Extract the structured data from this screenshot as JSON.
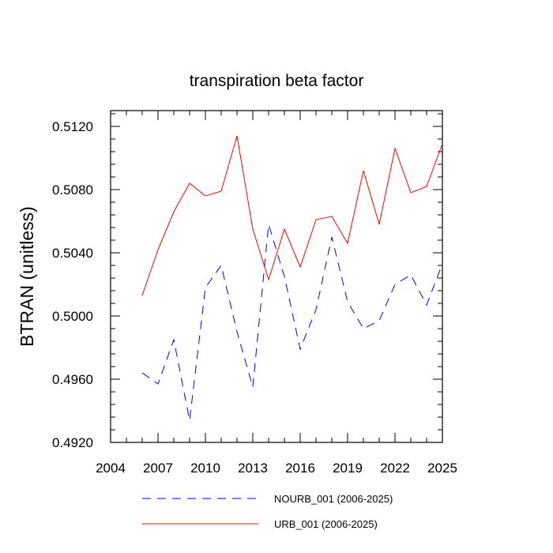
{
  "chart_data": {
    "type": "line",
    "title": "transpiration beta factor",
    "xlabel": "",
    "ylabel": "BTRAN  (unitless)",
    "xlim": [
      2004,
      2025
    ],
    "ylim": [
      0.492,
      0.513
    ],
    "xticks": [
      2004,
      2007,
      2010,
      2013,
      2016,
      2019,
      2022,
      2025
    ],
    "yticks": [
      0.492,
      0.496,
      0.5,
      0.504,
      0.508,
      0.512
    ],
    "ytick_labels": [
      "0.4920",
      "0.4960",
      "0.5000",
      "0.5040",
      "0.5080",
      "0.5120"
    ],
    "x": [
      2006,
      2007,
      2008,
      2009,
      2010,
      2011,
      2012,
      2013,
      2014,
      2015,
      2016,
      2017,
      2018,
      2019,
      2020,
      2021,
      2022,
      2023,
      2024,
      2025
    ],
    "series": [
      {
        "name": "NOURB_001 (2006-2025)",
        "color": "#0000ff",
        "dash": true,
        "values": [
          0.4964,
          0.4957,
          0.4985,
          0.4934,
          0.5018,
          0.5032,
          0.499,
          0.4955,
          0.5058,
          0.5025,
          0.4979,
          0.5004,
          0.505,
          0.5009,
          0.4992,
          0.4997,
          0.502,
          0.5026,
          0.5007,
          0.5033
        ]
      },
      {
        "name": "URB_001 (2006-2025)",
        "color": "#ff0000",
        "dash": false,
        "values": [
          0.5013,
          0.5042,
          0.5066,
          0.5084,
          0.5076,
          0.5079,
          0.5114,
          0.5055,
          0.5023,
          0.5055,
          0.5031,
          0.5061,
          0.5063,
          0.5046,
          0.5092,
          0.5058,
          0.5106,
          0.5078,
          0.5082,
          0.5109
        ]
      }
    ]
  }
}
